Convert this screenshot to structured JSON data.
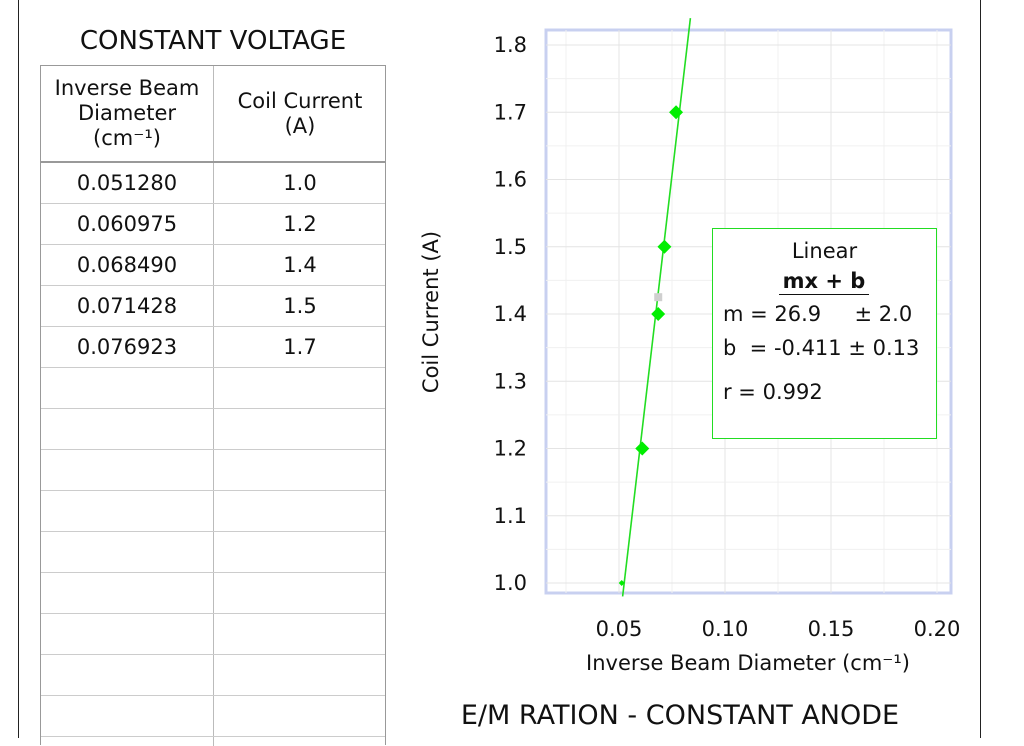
{
  "table": {
    "title": "CONSTANT VOLTAGE",
    "headers": [
      "Inverse Beam Diameter (cm⁻¹)",
      "Coil Current (A)"
    ],
    "rows": [
      [
        "0.051280",
        "1.0"
      ],
      [
        "0.060975",
        "1.2"
      ],
      [
        "0.068490",
        "1.4"
      ],
      [
        "0.071428",
        "1.5"
      ],
      [
        "0.076923",
        "1.7"
      ]
    ],
    "empty_rows": 9
  },
  "fit": {
    "type": "Linear",
    "equation": "mx + b",
    "m_label": "m = 26.9     ± 2.0",
    "b_label": "b  = -0.411 ± 0.13",
    "r_label": "r = 0.992"
  },
  "chart_data": {
    "type": "scatter",
    "title": "E/M RATION - CONSTANT ANODE",
    "xlabel": "Inverse Beam Diameter (cm⁻¹)",
    "ylabel": "Coil Current (A)",
    "xlim": [
      0.015,
      0.21
    ],
    "ylim": [
      0.98,
      1.82
    ],
    "x_ticks": [
      0.05,
      0.1,
      0.15,
      0.2
    ],
    "x_tick_labels": [
      "0.05",
      "0.10",
      "0.15",
      "0.20"
    ],
    "y_ticks": [
      1.0,
      1.1,
      1.2,
      1.3,
      1.4,
      1.5,
      1.6,
      1.7,
      1.8
    ],
    "y_tick_labels": [
      "1.0",
      "1.1",
      "1.2",
      "1.3",
      "1.4",
      "1.5",
      "1.6",
      "1.7",
      "1.8"
    ],
    "grid": true,
    "series": [
      {
        "color": "#00ee00",
        "x": [
          0.05128,
          0.060975,
          0.06849,
          0.071428,
          0.076923
        ],
        "y": [
          1.0,
          1.2,
          1.4,
          1.5,
          1.7
        ]
      }
    ],
    "fit_line": {
      "slope": 26.9,
      "intercept": -0.411,
      "color": "#22dd22"
    }
  }
}
